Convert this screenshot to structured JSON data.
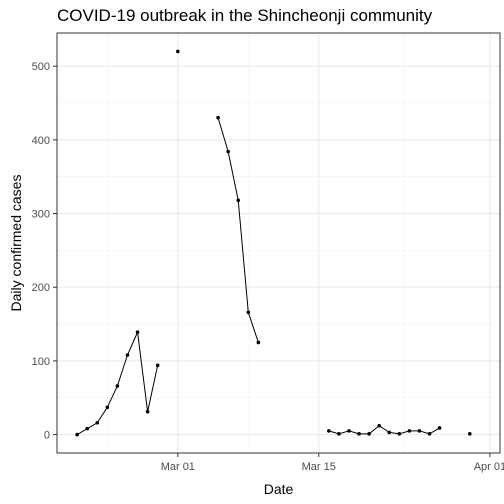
{
  "chart_data": {
    "type": "line",
    "title": "COVID-19 outbreak in the Shincheonji community",
    "xlabel": "Date",
    "ylabel": "Daily confirmed cases",
    "x_tick_labels": [
      "Mar 01",
      "Mar 15",
      "Apr 01"
    ],
    "x_tick_dates": [
      "2020-03-01",
      "2020-03-15",
      "2020-04-01"
    ],
    "y_ticks": [
      0,
      100,
      200,
      300,
      400,
      500
    ],
    "xlim": [
      "2020-02-18",
      "2020-04-02"
    ],
    "ylim": [
      -25,
      545
    ],
    "grid": true,
    "theme": "bw",
    "line_color": "#000000",
    "series": [
      {
        "values": [
          {
            "x": "2020-02-20",
            "y": 0
          },
          {
            "x": "2020-02-21",
            "y": 8
          },
          {
            "x": "2020-02-22",
            "y": 16
          },
          {
            "x": "2020-02-23",
            "y": 37
          },
          {
            "x": "2020-02-24",
            "y": 66
          },
          {
            "x": "2020-02-25",
            "y": 108
          },
          {
            "x": "2020-02-26",
            "y": 139
          },
          {
            "x": "2020-02-27",
            "y": 31
          },
          {
            "x": "2020-02-28",
            "y": 94
          },
          {
            "x": "2020-02-29",
            "y": null
          },
          {
            "x": "2020-03-01",
            "y": 520
          },
          {
            "x": "2020-03-02",
            "y": null
          },
          {
            "x": "2020-03-03",
            "y": null
          },
          {
            "x": "2020-03-04",
            "y": null
          },
          {
            "x": "2020-03-05",
            "y": 430
          },
          {
            "x": "2020-03-06",
            "y": 384
          },
          {
            "x": "2020-03-07",
            "y": 318
          },
          {
            "x": "2020-03-08",
            "y": 166
          },
          {
            "x": "2020-03-09",
            "y": 125
          },
          {
            "x": "2020-03-16",
            "y": 5
          },
          {
            "x": "2020-03-17",
            "y": 1
          },
          {
            "x": "2020-03-18",
            "y": 5
          },
          {
            "x": "2020-03-19",
            "y": 1
          },
          {
            "x": "2020-03-20",
            "y": 1
          },
          {
            "x": "2020-03-21",
            "y": 12
          },
          {
            "x": "2020-03-22",
            "y": 3
          },
          {
            "x": "2020-03-23",
            "y": 1
          },
          {
            "x": "2020-03-24",
            "y": 5
          },
          {
            "x": "2020-03-25",
            "y": 5
          },
          {
            "x": "2020-03-26",
            "y": 1
          },
          {
            "x": "2020-03-27",
            "y": 9
          },
          {
            "x": "2020-03-30",
            "y": 1
          }
        ]
      }
    ]
  }
}
